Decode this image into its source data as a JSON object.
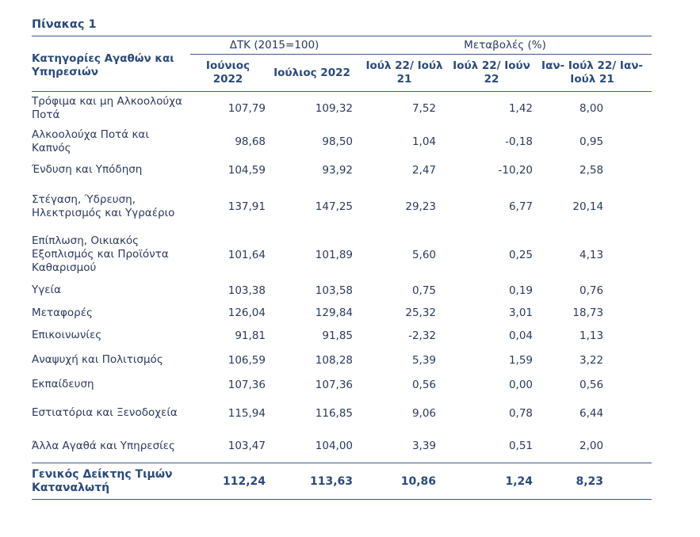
{
  "title": "Πίνακας 1",
  "header": {
    "category": "Κατηγορίες Αγαθών και Υπηρεσιών",
    "group_index": "ΔΤΚ (2015=100)",
    "group_change": "Μεταβολές (%)",
    "columns": [
      "Ιούνιος 2022",
      "Ιούλιος 2022",
      "Ιούλ 22/ Ιούλ 21",
      "Ιούλ 22/ Ιούν 22",
      "Ιαν- Ιούλ 22/ Ιαν- Ιούλ 21"
    ]
  },
  "rows": [
    {
      "label": "Τρόφιμα και μη Αλκοολούχα Ποτά",
      "values": [
        "107,79",
        "109,32",
        "7,52",
        "1,42",
        "8,00"
      ]
    },
    {
      "label": "Αλκοολούχα Ποτά και Καπνός",
      "values": [
        "98,68",
        "98,50",
        "1,04",
        "-0,18",
        "0,95"
      ]
    },
    {
      "label": "Ένδυση και Υπόδηση",
      "values": [
        "104,59",
        "93,92",
        "2,47",
        "-10,20",
        "2,58"
      ]
    },
    {
      "label": "Στέγαση, Ύδρευση, Ηλεκτρισμός και Υγραέριο",
      "values": [
        "137,91",
        "147,25",
        "29,23",
        "6,77",
        "20,14"
      ]
    },
    {
      "label": "Επίπλωση, Οικιακός Εξοπλισμός και Προϊόντα Καθαρισμού",
      "values": [
        "101,64",
        "101,89",
        "5,60",
        "0,25",
        "4,13"
      ]
    },
    {
      "label": "Υγεία",
      "values": [
        "103,38",
        "103,58",
        "0,75",
        "0,19",
        "0,76"
      ]
    },
    {
      "label": "Μεταφορές",
      "values": [
        "126,04",
        "129,84",
        "25,32",
        "3,01",
        "18,73"
      ]
    },
    {
      "label": "Επικοινωνίες",
      "values": [
        "91,81",
        "91,85",
        "-2,32",
        "0,04",
        "1,13"
      ]
    },
    {
      "label": "Αναψυχή και Πολιτισμός",
      "values": [
        "106,59",
        "108,28",
        "5,39",
        "1,59",
        "3,22"
      ]
    },
    {
      "label": "Εκπαίδευση",
      "values": [
        "107,36",
        "107,36",
        "0,56",
        "0,00",
        "0,56"
      ]
    },
    {
      "label": "Εστιατόρια και Ξενοδοχεία",
      "values": [
        "115,94",
        "116,85",
        "9,06",
        "0,78",
        "6,44"
      ]
    },
    {
      "label": "Άλλα Αγαθά και Υπηρεσίες",
      "values": [
        "103,47",
        "104,00",
        "3,39",
        "0,51",
        "2,00"
      ]
    }
  ],
  "total": {
    "label": "Γενικός Δείκτης Τιμών Καταναλωτή",
    "values": [
      "112,24",
      "113,63",
      "10,86",
      "1,24",
      "8,23"
    ]
  }
}
